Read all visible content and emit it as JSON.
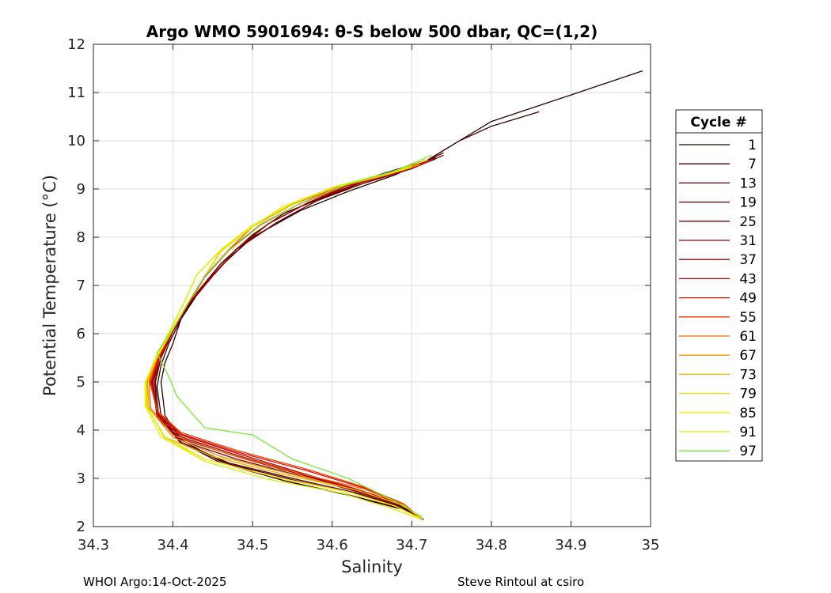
{
  "chart_data": {
    "type": "line",
    "title": "Argo WMO 5901694: θ-S below 500 dbar,  QC=(1,2)",
    "xlabel": "Salinity",
    "ylabel": "Potential Temperature (°C)",
    "xlim": [
      34.3,
      35
    ],
    "ylim": [
      2,
      12
    ],
    "xticks": [
      "34.3",
      "34.4",
      "34.5",
      "34.6",
      "34.7",
      "34.8",
      "34.9",
      "35"
    ],
    "yticks": [
      "2",
      "3",
      "4",
      "5",
      "6",
      "7",
      "8",
      "9",
      "10",
      "11",
      "12"
    ],
    "grid": true,
    "legend": {
      "title": "Cycle #",
      "placement": "right-outside",
      "entries": [
        {
          "label": "1",
          "color": "#2a0000"
        },
        {
          "label": "7",
          "color": "#3d0000"
        },
        {
          "label": "13",
          "color": "#520000"
        },
        {
          "label": "19",
          "color": "#680000"
        },
        {
          "label": "25",
          "color": "#7e0000"
        },
        {
          "label": "31",
          "color": "#950000"
        },
        {
          "label": "37",
          "color": "#ac0000"
        },
        {
          "label": "43",
          "color": "#c40000"
        },
        {
          "label": "49",
          "color": "#dc1400"
        },
        {
          "label": "55",
          "color": "#ee3a00"
        },
        {
          "label": "61",
          "color": "#f56a00"
        },
        {
          "label": "67",
          "color": "#f39200"
        },
        {
          "label": "73",
          "color": "#eab400"
        },
        {
          "label": "79",
          "color": "#f2d700"
        },
        {
          "label": "85",
          "color": "#f4ee00"
        },
        {
          "label": "91",
          "color": "#d6f000"
        },
        {
          "label": "97",
          "color": "#7ee83a"
        }
      ]
    },
    "series": [
      {
        "label": "1",
        "x": [
          34.99,
          34.9,
          34.8,
          34.76,
          34.74,
          34.72,
          34.68,
          34.62,
          34.56,
          34.5,
          34.46,
          34.43,
          34.41,
          34.4,
          34.39,
          34.385,
          34.39,
          34.41,
          34.46,
          34.54,
          34.62,
          34.69,
          34.715
        ],
        "y": [
          11.45,
          10.95,
          10.4,
          10.0,
          9.8,
          9.6,
          9.3,
          8.95,
          8.55,
          8.0,
          7.4,
          6.8,
          6.3,
          5.8,
          5.4,
          5.0,
          4.3,
          3.8,
          3.35,
          2.95,
          2.65,
          2.35,
          2.15
        ]
      },
      {
        "label": "7",
        "x": [
          34.86,
          34.8,
          34.76,
          34.72,
          34.66,
          34.6,
          34.54,
          34.5,
          34.46,
          34.43,
          34.41,
          34.395,
          34.385,
          34.38,
          34.385,
          34.41,
          34.46,
          34.54,
          34.62,
          34.69,
          34.712
        ],
        "y": [
          10.6,
          10.3,
          10.0,
          9.6,
          9.3,
          8.9,
          8.5,
          8.05,
          7.45,
          6.85,
          6.3,
          5.8,
          5.35,
          4.9,
          4.3,
          3.75,
          3.32,
          2.95,
          2.66,
          2.36,
          2.15
        ]
      },
      {
        "label": "13",
        "x": [
          34.74,
          34.7,
          34.64,
          34.58,
          34.53,
          34.48,
          34.45,
          34.42,
          34.4,
          34.385,
          34.378,
          34.382,
          34.41,
          34.47,
          34.55,
          34.63,
          34.69,
          34.713
        ],
        "y": [
          9.75,
          9.45,
          9.15,
          8.75,
          8.3,
          7.75,
          7.2,
          6.6,
          6.05,
          5.5,
          5.0,
          4.3,
          3.72,
          3.3,
          2.97,
          2.68,
          2.38,
          2.15
        ]
      },
      {
        "label": "19",
        "x": [
          34.74,
          34.7,
          34.64,
          34.58,
          34.53,
          34.48,
          34.45,
          34.42,
          34.4,
          34.385,
          34.377,
          34.38,
          34.41,
          34.47,
          34.55,
          34.63,
          34.69,
          34.713
        ],
        "y": [
          9.7,
          9.42,
          9.12,
          8.75,
          8.3,
          7.75,
          7.2,
          6.62,
          6.05,
          5.5,
          5.0,
          4.3,
          3.75,
          3.32,
          3.0,
          2.7,
          2.4,
          2.15
        ]
      },
      {
        "label": "25",
        "x": [
          34.73,
          34.69,
          34.63,
          34.57,
          34.52,
          34.48,
          34.45,
          34.42,
          34.4,
          34.385,
          34.375,
          34.38,
          34.41,
          34.48,
          34.56,
          34.63,
          34.69,
          34.713
        ],
        "y": [
          9.65,
          9.4,
          9.1,
          8.72,
          8.28,
          7.75,
          7.2,
          6.62,
          6.05,
          5.5,
          5.0,
          4.25,
          3.78,
          3.4,
          3.05,
          2.73,
          2.42,
          2.15
        ]
      },
      {
        "label": "31",
        "x": [
          34.73,
          34.69,
          34.63,
          34.57,
          34.52,
          34.48,
          34.45,
          34.42,
          34.4,
          34.383,
          34.374,
          34.38,
          34.41,
          34.48,
          34.56,
          34.63,
          34.69,
          34.713
        ],
        "y": [
          9.62,
          9.38,
          9.1,
          8.72,
          8.28,
          7.76,
          7.2,
          6.63,
          6.06,
          5.5,
          5.0,
          4.28,
          3.82,
          3.45,
          3.08,
          2.75,
          2.43,
          2.15
        ]
      },
      {
        "label": "37",
        "x": [
          34.72,
          34.68,
          34.62,
          34.57,
          34.52,
          34.48,
          34.45,
          34.42,
          34.4,
          34.383,
          34.374,
          34.38,
          34.41,
          34.48,
          34.56,
          34.63,
          34.69,
          34.713
        ],
        "y": [
          9.6,
          9.35,
          9.07,
          8.72,
          8.28,
          7.76,
          7.22,
          6.64,
          6.07,
          5.5,
          5.0,
          4.32,
          3.86,
          3.48,
          3.1,
          2.76,
          2.44,
          2.15
        ]
      },
      {
        "label": "43",
        "x": [
          34.72,
          34.68,
          34.62,
          34.56,
          34.51,
          34.47,
          34.44,
          34.42,
          34.4,
          34.382,
          34.373,
          34.38,
          34.41,
          34.48,
          34.56,
          34.63,
          34.69,
          34.713
        ],
        "y": [
          9.58,
          9.35,
          9.08,
          8.7,
          8.25,
          7.72,
          7.18,
          6.64,
          6.07,
          5.5,
          5.0,
          4.35,
          3.9,
          3.52,
          3.12,
          2.78,
          2.45,
          2.15
        ]
      },
      {
        "label": "49",
        "x": [
          34.72,
          34.68,
          34.62,
          34.56,
          34.51,
          34.47,
          34.44,
          34.42,
          34.4,
          34.382,
          34.372,
          34.38,
          34.41,
          34.48,
          34.57,
          34.64,
          34.69,
          34.713
        ],
        "y": [
          9.56,
          9.33,
          9.07,
          8.7,
          8.26,
          7.73,
          7.19,
          6.65,
          6.08,
          5.5,
          5.0,
          4.38,
          3.92,
          3.55,
          3.15,
          2.8,
          2.46,
          2.15
        ]
      },
      {
        "label": "55",
        "x": [
          34.71,
          34.67,
          34.61,
          34.56,
          34.51,
          34.47,
          34.44,
          34.42,
          34.4,
          34.381,
          34.371,
          34.38,
          34.41,
          34.48,
          34.57,
          34.64,
          34.69,
          34.713
        ],
        "y": [
          9.52,
          9.3,
          9.05,
          8.7,
          8.26,
          7.74,
          7.2,
          6.66,
          6.08,
          5.5,
          5.0,
          4.4,
          3.95,
          3.58,
          3.18,
          2.82,
          2.47,
          2.15
        ]
      },
      {
        "label": "61",
        "x": [
          34.71,
          34.67,
          34.61,
          34.55,
          34.5,
          34.47,
          34.44,
          34.42,
          34.4,
          34.38,
          34.37,
          34.372,
          34.4,
          34.47,
          34.56,
          34.64,
          34.69,
          34.713
        ],
        "y": [
          9.5,
          9.3,
          9.05,
          8.68,
          8.22,
          7.74,
          7.2,
          6.66,
          6.1,
          5.5,
          5.0,
          4.45,
          3.9,
          3.5,
          3.1,
          2.78,
          2.45,
          2.15
        ]
      },
      {
        "label": "67",
        "x": [
          34.71,
          34.66,
          34.6,
          34.55,
          34.5,
          34.46,
          34.44,
          34.42,
          34.4,
          34.38,
          34.368,
          34.37,
          34.4,
          34.46,
          34.55,
          34.63,
          34.69,
          34.713
        ],
        "y": [
          9.5,
          9.28,
          9.03,
          8.68,
          8.22,
          7.7,
          7.2,
          6.67,
          6.1,
          5.5,
          5.0,
          4.45,
          3.85,
          3.45,
          3.08,
          2.76,
          2.44,
          2.15
        ]
      },
      {
        "label": "73",
        "x": [
          34.7,
          34.66,
          34.6,
          34.55,
          34.5,
          34.46,
          34.44,
          34.42,
          34.4,
          34.38,
          34.367,
          34.368,
          34.39,
          34.45,
          34.54,
          34.63,
          34.69,
          34.713
        ],
        "y": [
          9.48,
          9.28,
          9.03,
          8.68,
          8.22,
          7.7,
          7.2,
          6.67,
          6.1,
          5.5,
          5.0,
          4.45,
          3.85,
          3.45,
          3.08,
          2.76,
          2.44,
          2.15
        ]
      },
      {
        "label": "79",
        "x": [
          34.7,
          34.66,
          34.6,
          34.54,
          34.5,
          34.46,
          34.44,
          34.42,
          34.4,
          34.379,
          34.366,
          34.366,
          34.39,
          34.44,
          34.53,
          34.62,
          34.68,
          34.713
        ],
        "y": [
          9.45,
          9.26,
          9.02,
          8.65,
          8.22,
          7.7,
          7.2,
          6.67,
          6.1,
          5.5,
          5.0,
          4.5,
          3.85,
          3.4,
          3.02,
          2.72,
          2.42,
          2.15
        ]
      },
      {
        "label": "85",
        "x": [
          34.7,
          34.65,
          34.6,
          34.54,
          34.5,
          34.46,
          34.43,
          34.415,
          34.398,
          34.379,
          34.365,
          34.365,
          34.385,
          34.44,
          34.53,
          34.62,
          34.68,
          34.713
        ],
        "y": [
          9.45,
          9.25,
          9.02,
          8.65,
          8.22,
          7.72,
          7.22,
          6.68,
          6.1,
          5.5,
          5.0,
          4.5,
          3.85,
          3.4,
          3.02,
          2.72,
          2.42,
          2.15
        ]
      },
      {
        "label": "91",
        "x": [
          34.72,
          34.67,
          34.61,
          34.55,
          34.5,
          34.46,
          34.43,
          34.415,
          34.397,
          34.378,
          34.366,
          34.367,
          34.39,
          34.44,
          34.52,
          34.61,
          34.67,
          34.713
        ],
        "y": [
          9.6,
          9.33,
          9.08,
          8.7,
          8.25,
          7.74,
          7.22,
          6.68,
          6.1,
          5.5,
          5.0,
          4.5,
          3.82,
          3.35,
          2.98,
          2.7,
          2.4,
          2.15
        ]
      },
      {
        "label": "97",
        "x": [
          34.725,
          34.68,
          34.62,
          34.56,
          34.51,
          34.47,
          34.44,
          34.42,
          34.4,
          34.38,
          34.395,
          34.405,
          34.44,
          34.5,
          34.55,
          34.62,
          34.67,
          34.713
        ],
        "y": [
          9.7,
          9.38,
          9.1,
          8.7,
          8.25,
          7.72,
          7.2,
          6.66,
          6.1,
          5.6,
          5.1,
          4.7,
          4.05,
          3.9,
          3.4,
          3.0,
          2.6,
          2.2
        ]
      }
    ]
  },
  "footer": {
    "left": "WHOI Argo:14-Oct-2025",
    "right": "Steve Rintoul at csiro"
  }
}
